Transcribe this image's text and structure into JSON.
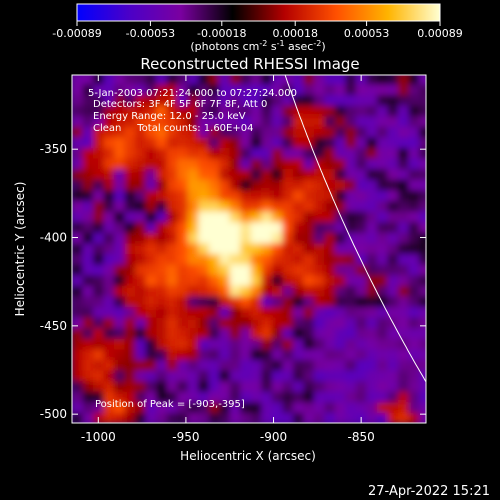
{
  "chart_data": {
    "type": "heatmap",
    "title": "Reconstructed RHESSI Image",
    "xlabel": "Heliocentric X (arcsec)",
    "ylabel": "Heliocentric Y (arcsec)",
    "xlim": [
      -1015,
      -813
    ],
    "ylim": [
      -505,
      -308
    ],
    "xticks": [
      "-1000",
      "-950",
      "-900",
      "-850"
    ],
    "xtick_values": [
      -1000,
      -950,
      -900,
      -850
    ],
    "yticks": [
      "-350",
      "-400",
      "-450",
      "-500"
    ],
    "ytick_values": [
      -350,
      -400,
      -450,
      -500
    ],
    "colorbar": {
      "ticks": [
        "-0.00089",
        "-0.00053",
        "-0.00018",
        "0.00018",
        "0.00053",
        "0.00089"
      ],
      "tick_values": [
        -0.00089,
        -0.00053,
        -0.00018,
        0.00018,
        0.00053,
        0.00089
      ],
      "range": [
        -0.00089,
        0.00089
      ],
      "units_parts": [
        "(photons cm",
        "-2",
        " s",
        "-1",
        " asec",
        "-2",
        ")"
      ],
      "stops": [
        "#0000ff",
        "#4b00c8",
        "#7a00a0",
        "#000000",
        "#b40000",
        "#ff5000",
        "#ffb400",
        "#ffffd2"
      ]
    },
    "annotations": [
      "5-Jan-2003 07:21:24.000 to 07:27:24.000",
      "Detectors: 3F 4F 5F 6F 7F 8F, Att 0",
      "Energy Range: 12.0 - 25.0 keV",
      "Clean     Total counts: 1.60E+04"
    ],
    "peak_label": "Position of Peak = [-903,-395]",
    "peak": [
      -903,
      -395
    ],
    "limb_visible": true
  },
  "timestamp": "27-Apr-2022 15:21",
  "colors": {
    "background": "#000000",
    "text": "#ffffff",
    "limb": "#ffffff"
  }
}
